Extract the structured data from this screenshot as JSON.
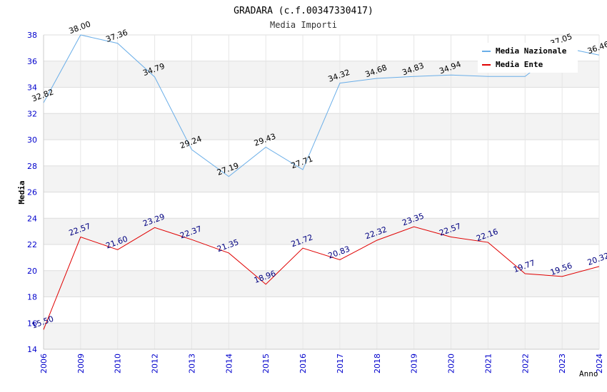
{
  "chart_data": {
    "type": "line",
    "title": "GRADARA (c.f.00347330417)",
    "subtitle": "Media Importi",
    "xlabel": "Anno",
    "ylabel": "Media",
    "ylim": [
      14,
      38
    ],
    "yticks": [
      14,
      16,
      18,
      20,
      22,
      24,
      26,
      28,
      30,
      32,
      34,
      36,
      38
    ],
    "grid": true,
    "legend_position": "top-right",
    "categories": [
      "2006",
      "2009",
      "2010",
      "2012",
      "2013",
      "2014",
      "2015",
      "2016",
      "2017",
      "2018",
      "2019",
      "2020",
      "2021",
      "2022",
      "2023",
      "2024"
    ],
    "series": [
      {
        "name": "Media Nazionale",
        "color": "#6aaee8",
        "label_color": "#000000",
        "values": [
          32.82,
          38.0,
          37.36,
          34.79,
          29.24,
          27.19,
          29.43,
          27.71,
          34.32,
          34.68,
          34.83,
          34.94,
          34.83,
          34.83,
          37.05,
          36.46
        ],
        "labels": [
          "32.82",
          "38.00",
          "37.36",
          "34.79",
          "29.24",
          "27.19",
          "29.43",
          "27.71",
          "34.32",
          "34.68",
          "34.83",
          "34.94",
          "",
          "",
          "37.05",
          "36.46"
        ]
      },
      {
        "name": "Media Ente",
        "color": "#e00000",
        "label_color": "#000080",
        "values": [
          15.5,
          22.57,
          21.6,
          23.29,
          22.37,
          21.35,
          18.96,
          21.72,
          20.83,
          22.32,
          23.35,
          22.57,
          22.16,
          19.77,
          19.56,
          20.32
        ],
        "labels": [
          "15.50",
          "22.57",
          "21.60",
          "23.29",
          "22.37",
          "21.35",
          "18.96",
          "21.72",
          "20.83",
          "22.32",
          "23.35",
          "22.57",
          "22.16",
          "19.77",
          "19.56",
          "20.32"
        ]
      }
    ]
  }
}
